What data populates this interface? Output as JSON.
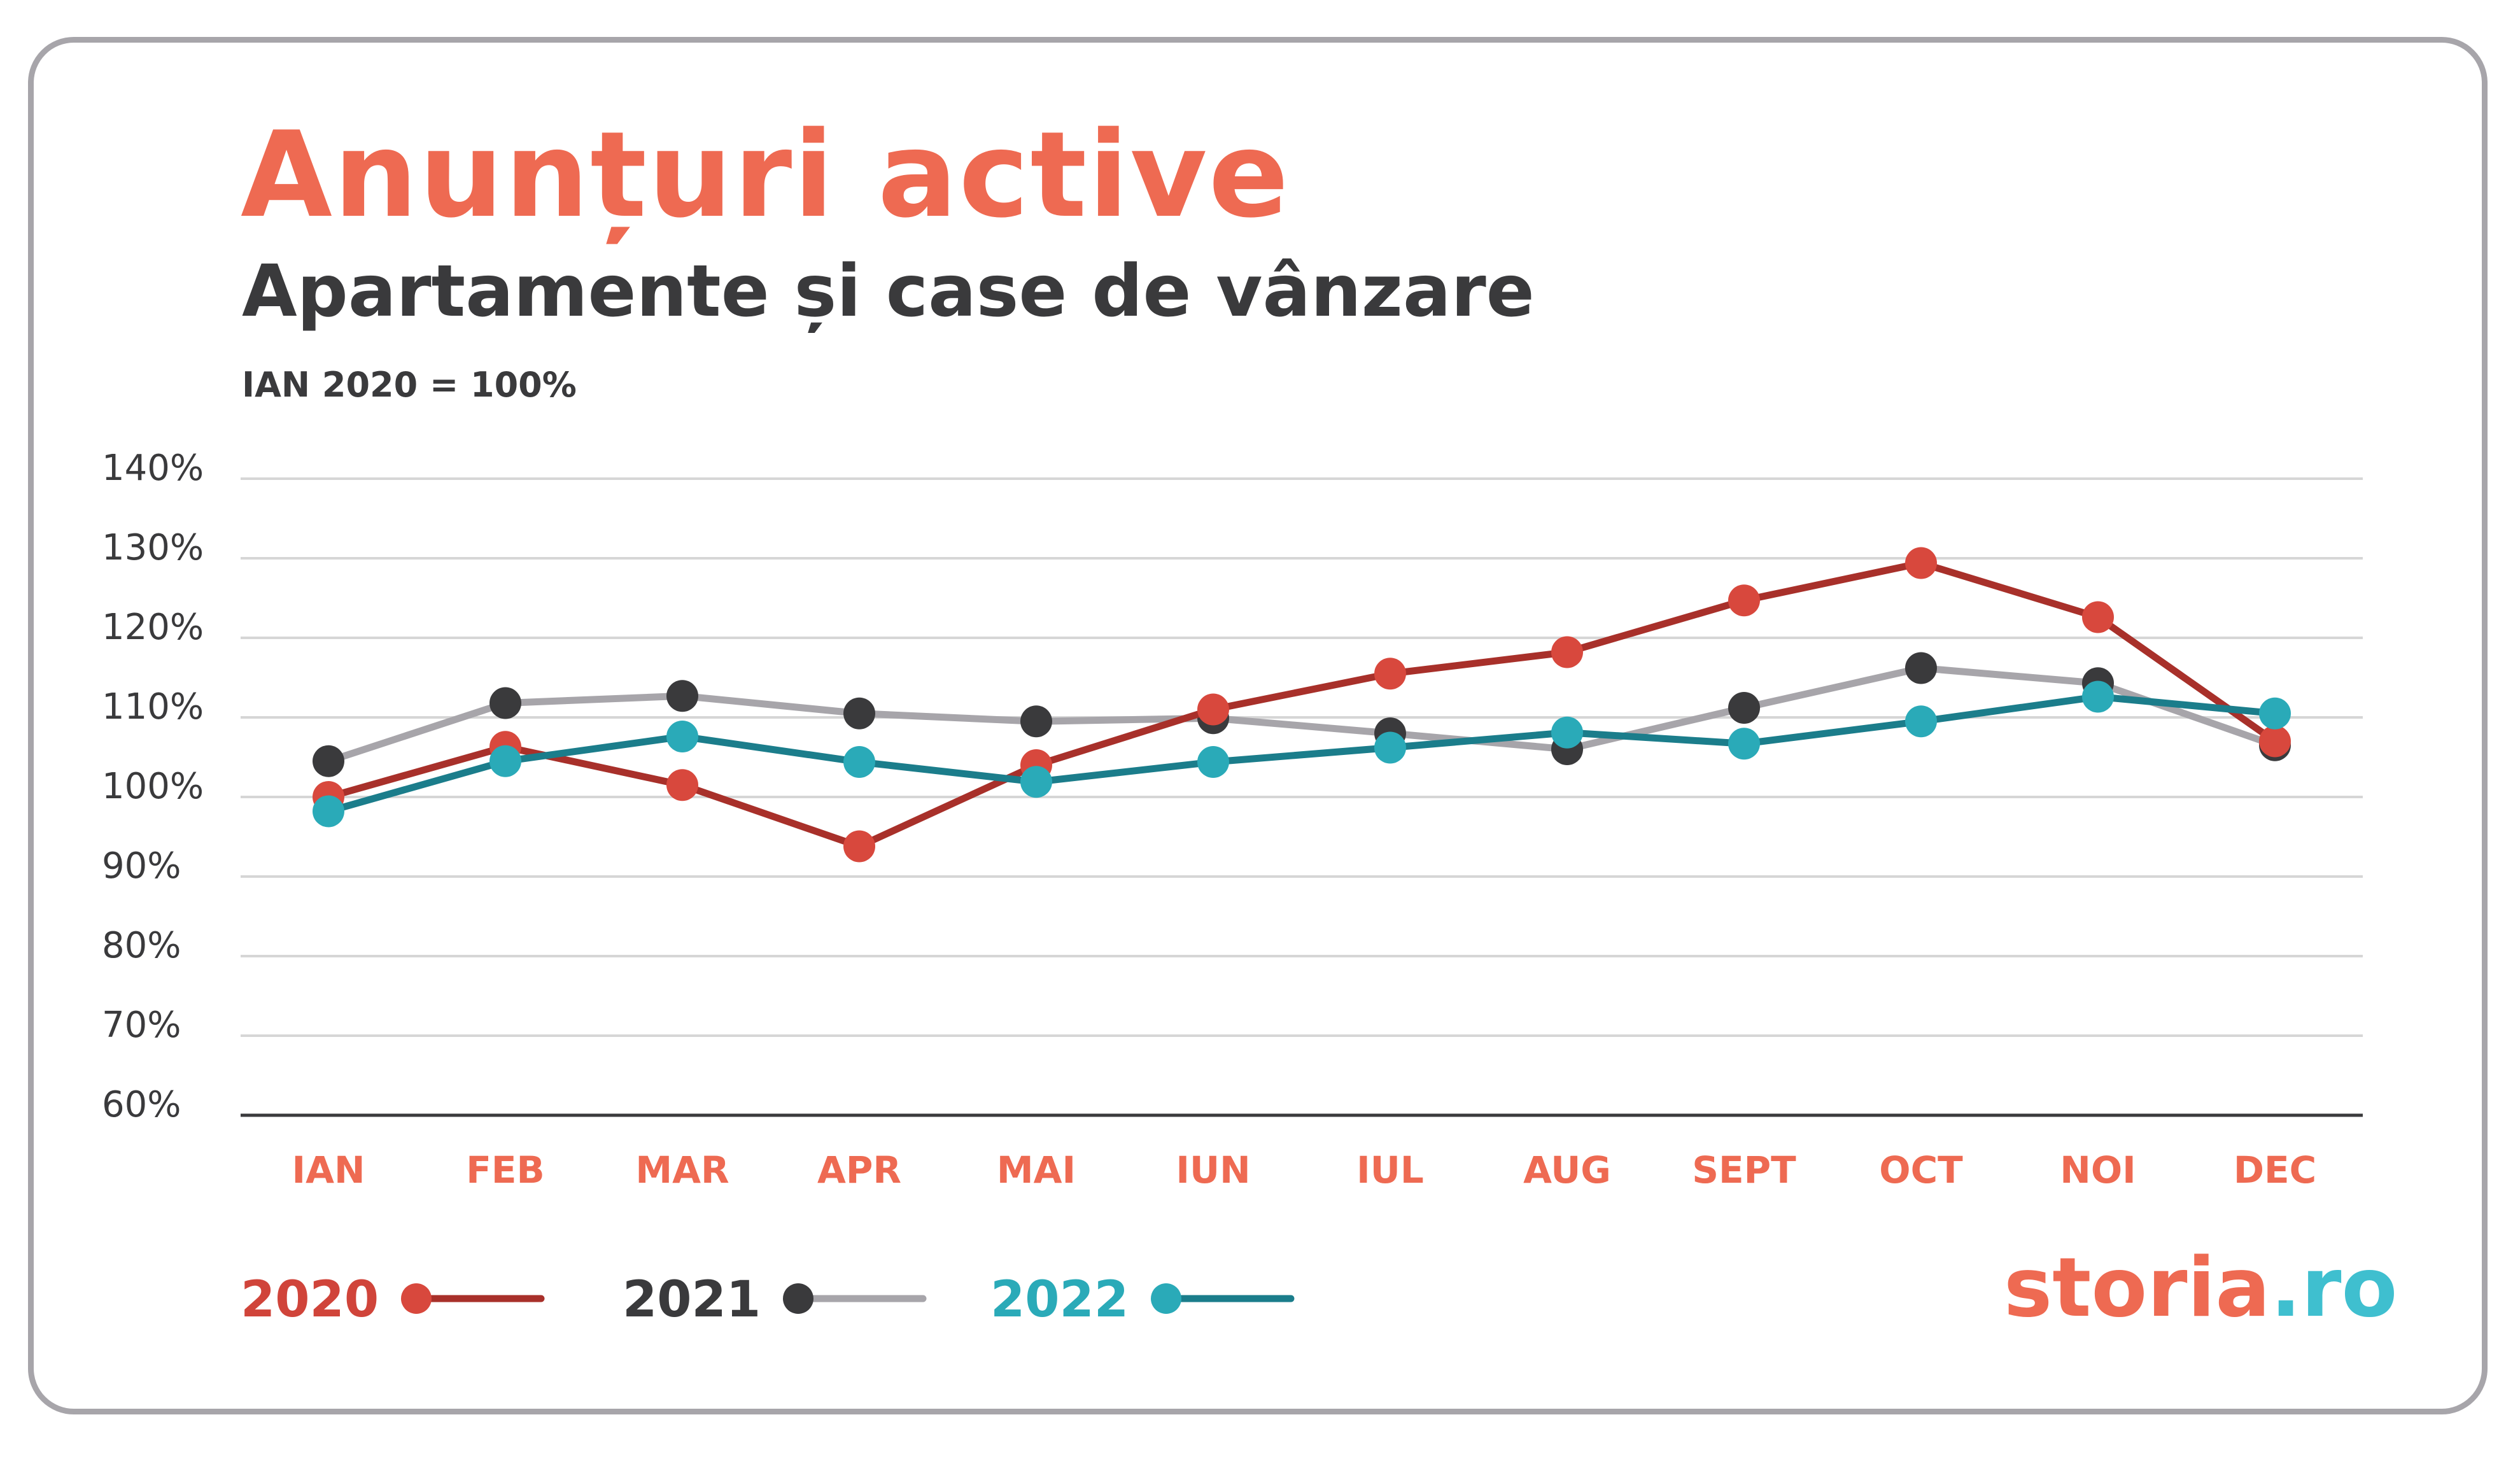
{
  "header": {
    "title": "Anunțuri active",
    "subtitle": "Apartamente și case de vânzare",
    "note": "IAN 2020 = 100%"
  },
  "brand": {
    "name": "storia",
    "tld": ".ro"
  },
  "colors": {
    "title": "#ee6a52",
    "text": "#3a3a3c",
    "grid": "#d6d6d6",
    "axis": "#3a3a3c",
    "month_label": "#ee6a52",
    "card_border": "#a7a5aa"
  },
  "chart_data": {
    "type": "line",
    "title": "Anunțuri active",
    "subtitle": "Apartamente și case de vânzare",
    "note": "IAN 2020 = 100%",
    "categories": [
      "IAN",
      "FEB",
      "MAR",
      "APR",
      "MAI",
      "IUN",
      "IUL",
      "AUG",
      "SEPT",
      "OCT",
      "NOI",
      "DEC"
    ],
    "y_ticks": [
      "60%",
      "70%",
      "80%",
      "90%",
      "100%",
      "110%",
      "120%",
      "130%",
      "140%"
    ],
    "ylim": [
      60,
      140
    ],
    "grid": true,
    "legend_position": "bottom-left",
    "series": [
      {
        "name": "2021",
        "label_color": "#3a3a3c",
        "line_color": "#a7a5aa",
        "marker_color": "#3a3a3c",
        "values": [
          104.5,
          111.8,
          112.7,
          110.5,
          109.5,
          109.9,
          108.0,
          106.0,
          111.2,
          116.2,
          114.3,
          106.5
        ]
      },
      {
        "name": "2020",
        "label_color": "#d0443a",
        "line_color": "#a8302a",
        "marker_color": "#d8483d",
        "values": [
          100.0,
          106.3,
          101.5,
          93.8,
          104.0,
          111.0,
          115.5,
          118.2,
          124.7,
          129.4,
          122.6,
          107.0
        ]
      },
      {
        "name": "2022",
        "label_color": "#2aaab8",
        "line_color": "#1b7d8b",
        "marker_color": "#2aaab8",
        "values": [
          98.2,
          104.5,
          107.6,
          104.4,
          101.9,
          104.4,
          106.2,
          108.1,
          106.7,
          109.5,
          112.6,
          110.5
        ]
      }
    ],
    "legend_order": [
      "2020",
      "2021",
      "2022"
    ]
  }
}
